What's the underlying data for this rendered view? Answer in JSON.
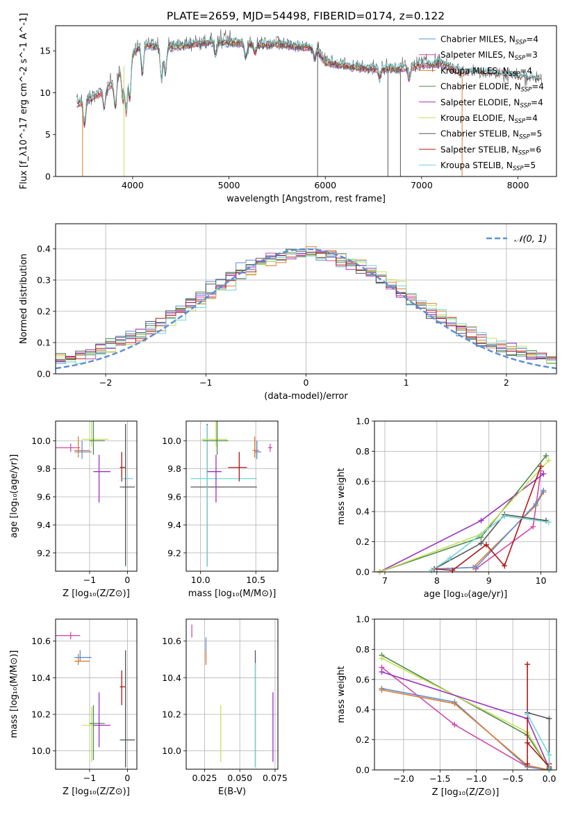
{
  "figure": {
    "title": "PLATE=2659, MJD=54498, FIBERID=0174, z=0.122"
  },
  "colors": {
    "Chabrier MILES": "#5b8fd6",
    "Salpeter MILES": "#d14aa6",
    "Kroupa MILES": "#e07b2a",
    "Chabrier ELODIE": "#4a8a4a",
    "Salpeter ELODIE": "#9b30c0",
    "Kroupa ELODIE": "#c8e05a",
    "Chabrier STELIB": "#555555",
    "Salpeter STELIB": "#b01818",
    "Kroupa STELIB": "#6fd6d6",
    "Normal": "#5b8fd6"
  },
  "chart_data": [
    {
      "type": "line",
      "id": "spectrum",
      "xlabel": "wavelength [Angstrom, rest frame]",
      "ylabel": "Flux [f_λ10^-17 erg cm^-2 s^-1 A^-1]",
      "xlim": [
        3200,
        8400
      ],
      "ylim": [
        0,
        18
      ],
      "xticks": [
        4000,
        5000,
        6000,
        7000,
        8000
      ],
      "yticks": [
        0,
        5,
        10,
        15
      ],
      "grid": false,
      "legend_position": "top-right",
      "series": [
        {
          "name": "Chabrier MILES",
          "nssp": "4"
        },
        {
          "name": "Salpeter MILES",
          "nssp": "3"
        },
        {
          "name": "Kroupa MILES",
          "nssp": "4"
        },
        {
          "name": "Chabrier ELODIE",
          "nssp": "4"
        },
        {
          "name": "Salpeter ELODIE",
          "nssp": "4"
        },
        {
          "name": "Kroupa ELODIE",
          "nssp": "4"
        },
        {
          "name": "Chabrier STELIB",
          "nssp": "5"
        },
        {
          "name": "Salpeter STELIB",
          "nssp": "6"
        },
        {
          "name": "Kroupa STELIB",
          "nssp": "5"
        }
      ],
      "continuum": {
        "x": [
          3400,
          3600,
          3800,
          3950,
          4100,
          4300,
          4500,
          4700,
          4900,
          5100,
          5300,
          5500,
          5700,
          5900,
          6000,
          6200,
          6400,
          6600,
          6800,
          7000,
          7200,
          7400,
          7600,
          7800,
          8000,
          8200
        ],
        "y": [
          8.5,
          9.5,
          11.0,
          14.0,
          15.8,
          15.4,
          15.5,
          15.9,
          16.1,
          15.9,
          15.7,
          15.8,
          15.5,
          15.3,
          13.6,
          13.2,
          12.9,
          12.8,
          12.9,
          13.3,
          13.5,
          12.4,
          12.3,
          12.1,
          11.8,
          11.6
        ]
      },
      "gaps": [
        {
          "series": "Kroupa MILES",
          "x": 3480
        },
        {
          "series": "Kroupa ELODIE",
          "x": 3910
        },
        {
          "series": "Chabrier STELIB",
          "x": 5920
        },
        {
          "series": "Chabrier STELIB",
          "x": 6650
        },
        {
          "series": "Chabrier STELIB",
          "x": 6780
        },
        {
          "series": "Kroupa MILES",
          "x": 7420
        }
      ]
    },
    {
      "type": "step",
      "id": "residuals",
      "xlabel": "(data-model)/error",
      "ylabel": "Normed distribution",
      "xlim": [
        -2.5,
        2.5
      ],
      "ylim": [
        0,
        0.48
      ],
      "xticks": [
        -2,
        -1,
        0,
        1,
        2
      ],
      "yticks": [
        0.0,
        0.1,
        0.2,
        0.3,
        0.4
      ],
      "grid": true,
      "legend": [
        {
          "label": "𝒩(0, 1)"
        }
      ],
      "legend_position": "top-right",
      "bin_width": 0.1
    },
    {
      "type": "errorbar",
      "id": "age_vs_Z",
      "xlabel": "Z [log₁₀(Z/Z⊙)]",
      "ylabel": "age  [log₁₀(age/yr)]",
      "xlim": [
        -1.9,
        0.25
      ],
      "ylim": [
        9.07,
        10.14
      ],
      "xticks": [
        -1,
        0
      ],
      "yticks": [
        9.2,
        9.4,
        9.6,
        9.8,
        10.0
      ],
      "grid": true,
      "points": [
        {
          "series": "Salpeter MILES",
          "x": -1.5,
          "y": 9.95,
          "xerr": [
            0.45,
            0.25
          ],
          "yerr": [
            0.03,
            0.03
          ]
        },
        {
          "series": "Kroupa MILES",
          "x": -1.3,
          "y": 9.93,
          "xerr": [
            0.1,
            0.3
          ],
          "yerr": [
            0.05,
            0.1
          ]
        },
        {
          "series": "Chabrier MILES",
          "x": -1.2,
          "y": 9.92,
          "xerr": [
            0.2,
            0.25
          ],
          "yerr": [
            0.05,
            0.08
          ]
        },
        {
          "series": "Kroupa ELODIE",
          "x": -0.95,
          "y": 10.01,
          "xerr": [
            0.25,
            0.45
          ],
          "yerr": [
            0.05,
            0.2
          ]
        },
        {
          "series": "Chabrier ELODIE",
          "x": -0.9,
          "y": 10.0,
          "xerr": [
            0.1,
            0.3
          ],
          "yerr": [
            0.1,
            0.2
          ]
        },
        {
          "series": "Salpeter ELODIE",
          "x": -0.75,
          "y": 9.78,
          "xerr": [
            0.15,
            0.3
          ],
          "yerr": [
            0.22,
            0.12
          ]
        },
        {
          "series": "Salpeter STELIB",
          "x": -0.15,
          "y": 9.81,
          "xerr": [
            0.05,
            0.1
          ],
          "yerr": [
            0.1,
            0.11
          ]
        },
        {
          "series": "Kroupa STELIB",
          "x": -0.05,
          "y": 9.73,
          "xerr": [
            0.1,
            0.2
          ],
          "yerr": [
            0.63,
            0.38
          ]
        },
        {
          "series": "Chabrier STELIB",
          "x": -0.05,
          "y": 9.67,
          "xerr": [
            0.15,
            0.25
          ],
          "yerr": [
            0.56,
            0.45
          ]
        }
      ]
    },
    {
      "type": "errorbar",
      "id": "age_vs_mass",
      "xlabel": "mass [log₁₀(M/M⊙)]",
      "ylabel": "",
      "xlim": [
        9.87,
        10.7
      ],
      "ylim": [
        9.07,
        10.14
      ],
      "xticks": [
        10.0,
        10.5
      ],
      "yticks": [
        9.2,
        9.4,
        9.6,
        9.8,
        10.0
      ],
      "grid": true,
      "points": [
        {
          "series": "Chabrier STELIB",
          "x": 10.06,
          "y": 9.67,
          "xerr": [
            0.15,
            0.45
          ],
          "yerr": [
            0.56,
            0.45
          ]
        },
        {
          "series": "Kroupa STELIB",
          "x": 10.06,
          "y": 9.73,
          "xerr": [
            0.15,
            0.45
          ],
          "yerr": [
            0.63,
            0.38
          ]
        },
        {
          "series": "Salpeter ELODIE",
          "x": 10.14,
          "y": 9.78,
          "xerr": [
            0.08,
            0.05
          ],
          "yerr": [
            0.22,
            0.12
          ]
        },
        {
          "series": "Kroupa ELODIE",
          "x": 10.14,
          "y": 10.01,
          "xerr": [
            0.13,
            0.1
          ],
          "yerr": [
            0.05,
            0.2
          ]
        },
        {
          "series": "Chabrier ELODIE",
          "x": 10.15,
          "y": 10.0,
          "xerr": [
            0.13,
            0.1
          ],
          "yerr": [
            0.1,
            0.2
          ]
        },
        {
          "series": "Salpeter STELIB",
          "x": 10.35,
          "y": 9.81,
          "xerr": [
            0.1,
            0.07
          ],
          "yerr": [
            0.1,
            0.11
          ]
        },
        {
          "series": "Kroupa MILES",
          "x": 10.49,
          "y": 9.93,
          "xerr": [
            0.02,
            0.04
          ],
          "yerr": [
            0.05,
            0.1
          ]
        },
        {
          "series": "Chabrier MILES",
          "x": 10.51,
          "y": 9.92,
          "xerr": [
            0.02,
            0.04
          ],
          "yerr": [
            0.05,
            0.08
          ]
        },
        {
          "series": "Salpeter MILES",
          "x": 10.63,
          "y": 9.95,
          "xerr": [
            0.02,
            0.02
          ],
          "yerr": [
            0.03,
            0.03
          ]
        }
      ]
    },
    {
      "type": "line",
      "id": "massweight_vs_age",
      "xlabel": "age  [log₁₀(age/yr)]",
      "ylabel": "mass weight",
      "xlim": [
        6.8,
        10.3
      ],
      "ylim": [
        0,
        1.0
      ],
      "xticks": [
        7,
        8,
        9,
        10
      ],
      "yticks": [
        0.0,
        0.2,
        0.4,
        0.6,
        0.8,
        1.0
      ],
      "grid": true,
      "series": [
        {
          "color_key": "Salpeter MILES",
          "x": [
            8.75,
            9.85,
            10.0
          ],
          "y": [
            0.02,
            0.3,
            0.67
          ]
        },
        {
          "color_key": "Kroupa MILES",
          "x": [
            8.0,
            8.7,
            9.9,
            10.05
          ],
          "y": [
            0.02,
            0.03,
            0.44,
            0.53
          ]
        },
        {
          "color_key": "Chabrier MILES",
          "x": [
            8.0,
            8.75,
            9.9,
            10.05
          ],
          "y": [
            0.02,
            0.03,
            0.45,
            0.54
          ]
        },
        {
          "color_key": "Chabrier ELODIE",
          "x": [
            6.9,
            8.85,
            10.1
          ],
          "y": [
            0.0,
            0.23,
            0.77
          ]
        },
        {
          "color_key": "Salpeter ELODIE",
          "x": [
            6.9,
            8.85,
            10.05
          ],
          "y": [
            0.0,
            0.34,
            0.65
          ]
        },
        {
          "color_key": "Kroupa ELODIE",
          "x": [
            6.9,
            8.85,
            10.15
          ],
          "y": [
            0.0,
            0.25,
            0.74
          ]
        },
        {
          "color_key": "Chabrier STELIB",
          "x": [
            7.9,
            8.85,
            9.3,
            10.1
          ],
          "y": [
            0.01,
            0.19,
            0.38,
            0.34
          ]
        },
        {
          "color_key": "Salpeter STELIB",
          "x": [
            7.95,
            8.3,
            8.95,
            9.3,
            10.0
          ],
          "y": [
            0.02,
            0.01,
            0.18,
            0.04,
            0.7
          ]
        },
        {
          "color_key": "Kroupa STELIB",
          "x": [
            7.9,
            8.25,
            9.3,
            10.15
          ],
          "y": [
            0.01,
            0.09,
            0.37,
            0.33
          ]
        }
      ]
    },
    {
      "type": "errorbar",
      "id": "mass_vs_Z",
      "xlabel": "Z [log₁₀(Z/Z⊙)]",
      "ylabel": "mass [log₁₀(M/M⊙)]",
      "xlim": [
        -1.9,
        0.25
      ],
      "ylim": [
        9.9,
        10.72
      ],
      "xticks": [
        -1,
        0
      ],
      "yticks": [
        10.0,
        10.2,
        10.4,
        10.6
      ],
      "grid": true,
      "points": [
        {
          "series": "Salpeter MILES",
          "x": -1.5,
          "y": 10.63,
          "xerr": [
            0.45,
            0.25
          ],
          "yerr": [
            0.02,
            0.02
          ]
        },
        {
          "series": "Kroupa MILES",
          "x": -1.3,
          "y": 10.49,
          "xerr": [
            0.1,
            0.3
          ],
          "yerr": [
            0.02,
            0.04
          ]
        },
        {
          "series": "Chabrier MILES",
          "x": -1.25,
          "y": 10.51,
          "xerr": [
            0.15,
            0.3
          ],
          "yerr": [
            0.02,
            0.04
          ]
        },
        {
          "series": "Kroupa ELODIE",
          "x": -0.95,
          "y": 10.14,
          "xerr": [
            0.25,
            0.45
          ],
          "yerr": [
            0.2,
            0.1
          ]
        },
        {
          "series": "Chabrier ELODIE",
          "x": -0.9,
          "y": 10.15,
          "xerr": [
            0.1,
            0.3
          ],
          "yerr": [
            0.2,
            0.1
          ]
        },
        {
          "series": "Salpeter ELODIE",
          "x": -0.75,
          "y": 10.14,
          "xerr": [
            0.15,
            0.3
          ],
          "yerr": [
            0.12,
            0.18
          ]
        },
        {
          "series": "Salpeter STELIB",
          "x": -0.15,
          "y": 10.35,
          "xerr": [
            0.05,
            0.1
          ],
          "yerr": [
            0.1,
            0.09
          ]
        },
        {
          "series": "Kroupa STELIB",
          "x": -0.05,
          "y": 10.06,
          "xerr": [
            0.1,
            0.2
          ],
          "yerr": [
            0.15,
            0.39
          ]
        },
        {
          "series": "Chabrier STELIB",
          "x": -0.05,
          "y": 10.06,
          "xerr": [
            0.15,
            0.25
          ],
          "yerr": [
            0.15,
            0.49
          ]
        }
      ]
    },
    {
      "type": "errorbar",
      "id": "mass_vs_ebv",
      "xlabel": "E(B-V)",
      "ylabel": "",
      "xlim": [
        0.012,
        0.077
      ],
      "ylim": [
        9.9,
        10.72
      ],
      "xticks": [
        0.025,
        0.05,
        0.075
      ],
      "xticklabels": [
        "0.025",
        "0.050",
        "0.075"
      ],
      "yticks": [
        10.0,
        10.2,
        10.4,
        10.6
      ],
      "grid": true,
      "points": [
        {
          "series": "Salpeter MILES",
          "x": 0.016,
          "y": 10.65,
          "xerr": [
            0,
            0
          ],
          "yerr": [
            0.03,
            0.04
          ]
        },
        {
          "series": "Chabrier MILES",
          "x": 0.026,
          "y": 10.53,
          "xerr": [
            0,
            0
          ],
          "yerr": [
            0.04,
            0.09
          ]
        },
        {
          "series": "Kroupa MILES",
          "x": 0.026,
          "y": 10.51,
          "xerr": [
            0,
            0
          ],
          "yerr": [
            0.04,
            0.04
          ]
        },
        {
          "series": "Kroupa ELODIE",
          "x": 0.0365,
          "y": 10.1,
          "xerr": [
            0,
            0
          ],
          "yerr": [
            0.16,
            0.15
          ]
        },
        {
          "series": "Chabrier STELIB",
          "x": 0.061,
          "y": 10.2,
          "xerr": [
            0,
            0
          ],
          "yerr": [
            0.29,
            0.35
          ]
        },
        {
          "series": "Kroupa STELIB",
          "x": 0.061,
          "y": 10.18,
          "xerr": [
            0,
            0
          ],
          "yerr": [
            0.27,
            0.3
          ]
        },
        {
          "series": "Salpeter ELODIE",
          "x": 0.0735,
          "y": 10.1,
          "xerr": [
            0,
            0
          ],
          "yerr": [
            0.16,
            0.22
          ]
        }
      ]
    },
    {
      "type": "line",
      "id": "massweight_vs_Z",
      "xlabel": "Z [log₁₀(Z/Z⊙)]",
      "ylabel": "mass weight",
      "xlim": [
        -2.4,
        0.1
      ],
      "ylim": [
        0,
        1.0
      ],
      "xticks": [
        -2.0,
        -1.5,
        -1.0,
        -0.5,
        0.0
      ],
      "yticks": [
        0.0,
        0.2,
        0.4,
        0.6,
        0.8,
        1.0
      ],
      "grid": true,
      "series": [
        {
          "color_key": "Chabrier ELODIE",
          "x": [
            -2.3,
            -0.3,
            0.0
          ],
          "y": [
            0.76,
            0.23,
            0.01
          ]
        },
        {
          "color_key": "Kroupa ELODIE",
          "x": [
            -2.3,
            -0.3,
            0.0
          ],
          "y": [
            0.74,
            0.25,
            0.01
          ]
        },
        {
          "color_key": "Salpeter MILES",
          "x": [
            -2.3,
            -1.3,
            -0.3,
            0.0
          ],
          "y": [
            0.68,
            0.3,
            0.02,
            0.0
          ]
        },
        {
          "color_key": "Salpeter ELODIE",
          "x": [
            -2.3,
            -0.3,
            0.0
          ],
          "y": [
            0.65,
            0.34,
            0.01
          ]
        },
        {
          "color_key": "Chabrier MILES",
          "x": [
            -2.3,
            -1.3,
            -0.3,
            0.0
          ],
          "y": [
            0.54,
            0.45,
            0.02,
            0.0
          ]
        },
        {
          "color_key": "Kroupa MILES",
          "x": [
            -2.3,
            -1.3,
            -0.3,
            0.0
          ],
          "y": [
            0.53,
            0.44,
            0.03,
            0.0
          ]
        },
        {
          "color_key": "Salpeter STELIB",
          "x": [
            -0.3,
            -0.3,
            -0.3,
            0.0,
            0.0
          ],
          "y": [
            0.04,
            0.7,
            0.18,
            0.02,
            0.04
          ]
        },
        {
          "color_key": "Chabrier STELIB",
          "x": [
            -0.3,
            0.0,
            0.0
          ],
          "y": [
            0.38,
            0.34,
            0.01
          ]
        },
        {
          "color_key": "Kroupa STELIB",
          "x": [
            -0.3,
            0.0,
            0.0
          ],
          "y": [
            0.37,
            0.1,
            0.0
          ]
        }
      ]
    }
  ]
}
